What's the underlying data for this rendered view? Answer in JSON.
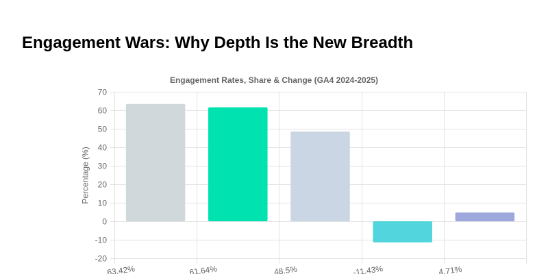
{
  "page": {
    "title": "Engagement Wars: Why Depth Is the New Breadth"
  },
  "chart_data": {
    "type": "bar",
    "title": "Engagement Rates, Share & Change (GA4 2024-2025)",
    "xlabel": "",
    "ylabel": "Percentage (%)",
    "ylim": [
      -20,
      70
    ],
    "ytick_step": 10,
    "grid": true,
    "legend": "none",
    "categories": [
      "63.42%",
      "61.64%",
      "48.5%",
      "-11.43%",
      "4.71%"
    ],
    "values": [
      63.42,
      61.64,
      48.5,
      -11.43,
      4.71
    ],
    "colors": [
      "#d0d8dc",
      "#00e3b0",
      "#cad6e4",
      "#52d5dc",
      "#9ea8dd"
    ]
  }
}
